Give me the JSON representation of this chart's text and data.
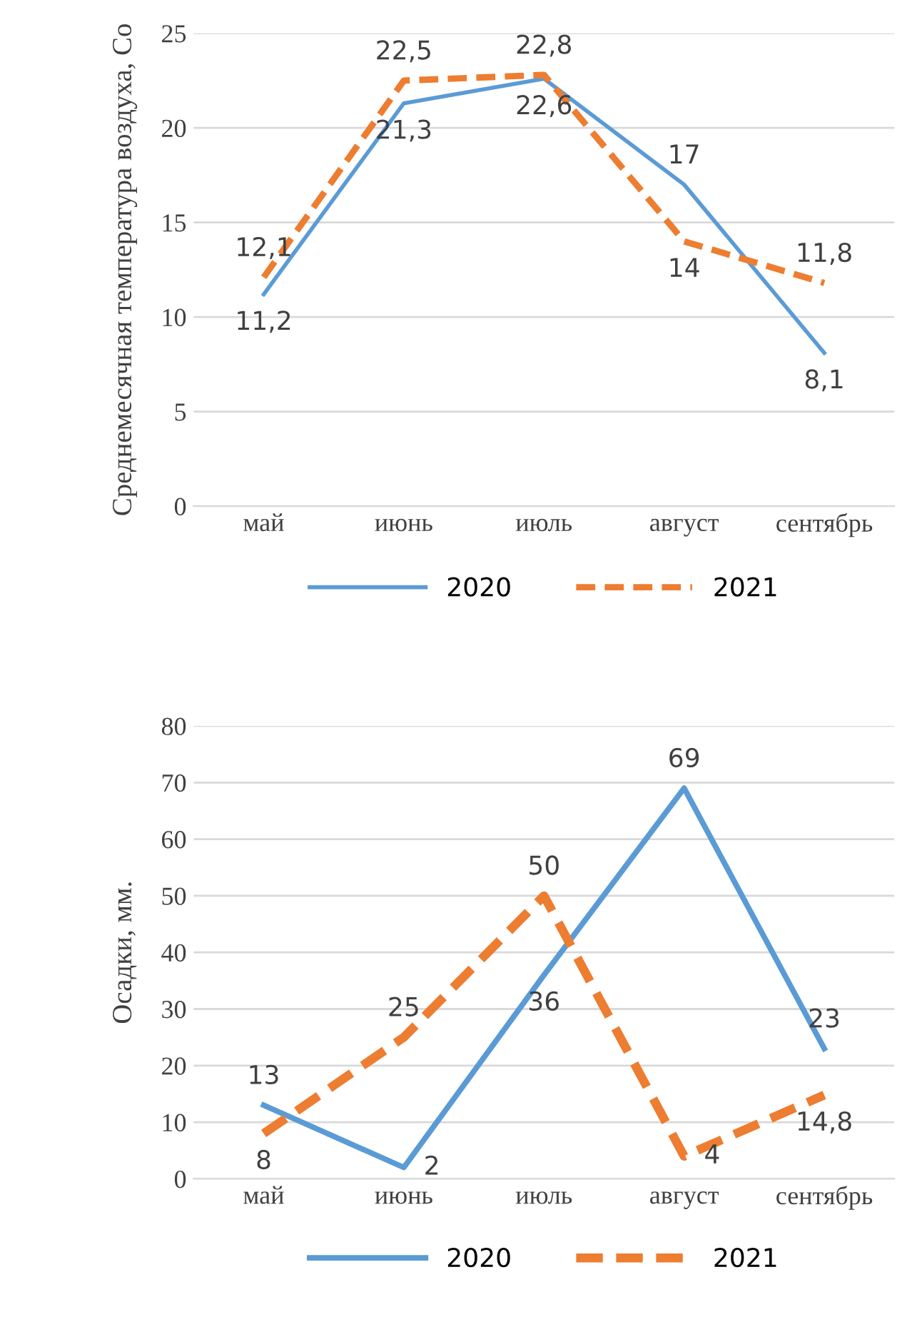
{
  "chart_data": [
    {
      "type": "line",
      "ylabel": "Среднемесячная температура воздуха, Со",
      "categories": [
        "май",
        "июнь",
        "июль",
        "август",
        "сентябрь"
      ],
      "ylim": [
        0,
        25
      ],
      "yticks": [
        0,
        5,
        10,
        15,
        20,
        25
      ],
      "grid": "y",
      "legend": "bottom",
      "marker": "none",
      "series": [
        {
          "name": "2020",
          "color": "#5b9bd5",
          "line_style": "solid",
          "values": [
            11.2,
            21.3,
            22.6,
            17,
            8.1
          ],
          "value_labels": [
            "11,2",
            "21,3",
            "22,6",
            "17",
            "8,1"
          ]
        },
        {
          "name": "2021",
          "color": "#ed7d31",
          "line_style": "dashed",
          "values": [
            12.1,
            22.5,
            22.8,
            14,
            11.8
          ],
          "value_labels": [
            "12,1",
            "22,5",
            "22,8",
            "14",
            "11,8"
          ]
        }
      ]
    },
    {
      "type": "line",
      "ylabel": "Осадки, мм.",
      "categories": [
        "май",
        "июнь",
        "июль",
        "август",
        "сентябрь"
      ],
      "ylim": [
        0,
        80
      ],
      "yticks": [
        0,
        10,
        20,
        30,
        40,
        50,
        60,
        70,
        80
      ],
      "grid": "y",
      "legend": "bottom",
      "marker": "none",
      "series": [
        {
          "name": "2020",
          "color": "#5b9bd5",
          "line_style": "solid",
          "values": [
            13,
            2,
            36,
            69,
            23
          ],
          "value_labels": [
            "13",
            "2",
            "36",
            "69",
            "23"
          ]
        },
        {
          "name": "2021",
          "color": "#ed7d31",
          "line_style": "dashed",
          "values": [
            8,
            25,
            50,
            4,
            14.8
          ],
          "value_labels": [
            "8",
            "25",
            "50",
            "4",
            "14,8"
          ]
        }
      ]
    }
  ]
}
